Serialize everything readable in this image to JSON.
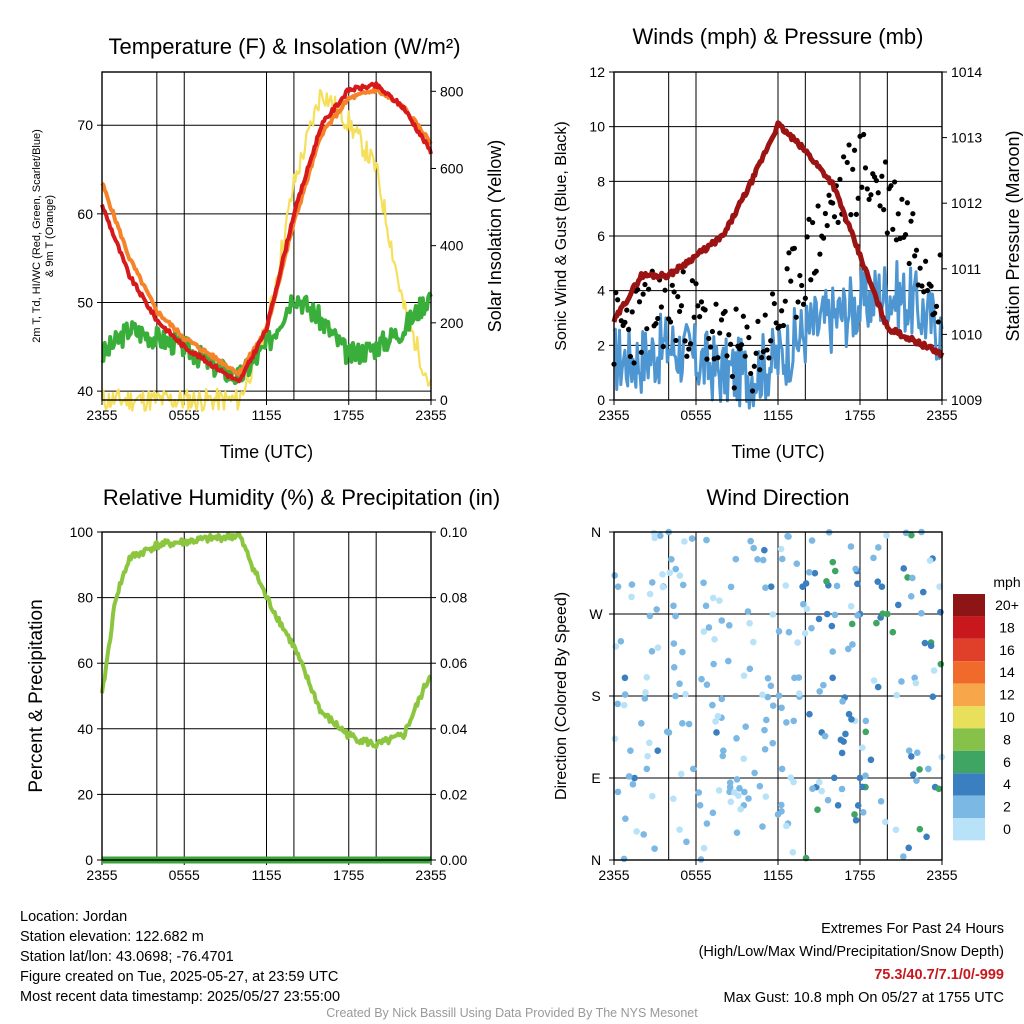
{
  "colors": {
    "temp": "#d7191c",
    "dewpoint": "#3aae3a",
    "wind_chill": "#2f70c0",
    "temp9m": "#f6832a",
    "insolation": "#f6df5a",
    "wind": "#4d96d1",
    "gust": "#000000",
    "pressure": "#9b1313",
    "rh": "#8cc63f",
    "precip": "#3aa43a",
    "extremes": "#c8171d"
  },
  "panels": {
    "temperature": {
      "title": "Temperature (F) & Insolation (W/m²)",
      "ylabel_left": "2m T, Tₑ, HI/WC (Red, Green, Scarlet/Blue) & 9m T (Orange)",
      "ylabel_left_line1": "2m T, Td, HI/WC (Red, Green, Scarlet/Blue)",
      "ylabel_left_line2": "& 9m T (Orange)",
      "ylabel_right": "Solar Insolation (Yellow)",
      "xlabel": "Time (UTC)",
      "yticks_left": [
        "40",
        "50",
        "60",
        "70"
      ],
      "yticks_right": [
        "0",
        "200",
        "400",
        "600",
        "800"
      ]
    },
    "winds": {
      "title": "Winds (mph) & Pressure (mb)",
      "ylabel_left": "Sonic Wind & Gust (Blue, Black)",
      "ylabel_right": "Station Pressure (Maroon)",
      "xlabel": "Time (UTC)",
      "yticks_left": [
        "0",
        "2",
        "4",
        "6",
        "8",
        "10",
        "12"
      ],
      "yticks_right": [
        "1009",
        "1010",
        "1011",
        "1012",
        "1013",
        "1014"
      ]
    },
    "humidity": {
      "title": "Relative Humidity (%) & Precipitation (in)",
      "ylabel_left": "Percent & Precipitation",
      "yticks_left": [
        "0",
        "20",
        "40",
        "60",
        "80",
        "100"
      ],
      "yticks_right": [
        "0.00",
        "0.02",
        "0.04",
        "0.06",
        "0.08",
        "0.10"
      ]
    },
    "direction": {
      "title": "Wind Direction",
      "ylabel_left": "Direction (Colored By Speed)",
      "yticks_left": [
        "N",
        "E",
        "S",
        "W",
        "N"
      ],
      "legend_title": "mph",
      "legend_labels": [
        "20+",
        "18",
        "16",
        "14",
        "12",
        "10",
        "8",
        "6",
        "4",
        "2",
        "0"
      ],
      "legend_colors": [
        "#8e1515",
        "#c8171d",
        "#e0402a",
        "#f06a2c",
        "#f7a64a",
        "#e8e05a",
        "#86c24a",
        "#3fa563",
        "#3a7fc0",
        "#7bb8e4",
        "#b8e2f8"
      ]
    }
  },
  "xticks": [
    "2355",
    "0555",
    "1155",
    "1755",
    "2355"
  ],
  "info": {
    "location": "Location: Jordan",
    "elevation": "Station elevation: 122.682 m",
    "latlon": "Station lat/lon: 43.0698; -76.4701",
    "created": "Figure created on Tue, 2025-05-27, at 23:59 UTC",
    "recent": "Most recent data timestamp: 2025/05/27 23:55:00"
  },
  "extremes": {
    "heading": "Extremes For Past 24 Hours",
    "subheading": "(High/Low/Max Wind/Precipitation/Snow Depth)",
    "values": "75.3/40.7/7.1/0/-999",
    "max_gust": "Max Gust: 10.8 mph On 05/27 at 1755 UTC"
  },
  "credit": "Created By Nick Bassill Using Data Provided By The NYS Mesonet",
  "chart_data": [
    {
      "type": "line",
      "title": "Temperature (F) & Insolation (W/m²)",
      "xlabel": "Time (UTC)",
      "x_hours": [
        0,
        2,
        4,
        6,
        8,
        10,
        12,
        14,
        16,
        18,
        20,
        22,
        24
      ],
      "ylim_left": [
        39,
        76
      ],
      "ylim_right": [
        0,
        850
      ],
      "series": [
        {
          "name": "2m T (Red)",
          "axis": "left",
          "values": [
            61,
            53,
            48,
            45,
            43,
            41,
            47,
            60,
            70,
            74,
            74.5,
            72,
            67
          ]
        },
        {
          "name": "9m T (Orange)",
          "axis": "left",
          "values": [
            63.5,
            55,
            49,
            46,
            44,
            42,
            47,
            59,
            69,
            73,
            74,
            72,
            68
          ]
        },
        {
          "name": "Td (Green)",
          "axis": "left",
          "values": [
            44,
            47,
            46,
            45,
            43,
            41.5,
            45,
            51,
            48,
            44,
            45,
            47,
            51
          ]
        },
        {
          "name": "Solar Insolation (Yellow)",
          "axis": "right",
          "values": [
            0,
            0,
            0,
            0,
            0,
            0,
            180,
            560,
            800,
            720,
            600,
            240,
            30
          ]
        }
      ]
    },
    {
      "type": "line",
      "title": "Winds (mph) & Pressure (mb)",
      "xlabel": "Time (UTC)",
      "x_hours": [
        0,
        2,
        4,
        6,
        8,
        10,
        12,
        14,
        16,
        18,
        20,
        22,
        24
      ],
      "ylim_left": [
        0,
        12
      ],
      "ylim_right": [
        1009,
        1014
      ],
      "series": [
        {
          "name": "Sonic Wind (Blue)",
          "axis": "left",
          "values": [
            1.5,
            1.5,
            2.0,
            1.5,
            1.0,
            1.0,
            1.5,
            2.5,
            3.0,
            3.5,
            4.0,
            3.5,
            2.5
          ]
        },
        {
          "name": "Gust (Black)",
          "axis": "left",
          "values": [
            2.5,
            3.0,
            3.5,
            3.0,
            2.0,
            1.5,
            3.0,
            5.0,
            7.0,
            8.5,
            7.5,
            6.0,
            4.0
          ]
        },
        {
          "name": "Station Pressure (Maroon)",
          "axis": "right",
          "values": [
            1010.2,
            1010.9,
            1010.9,
            1011.2,
            1011.5,
            1012.3,
            1013.2,
            1012.8,
            1012.3,
            1011.2,
            1010.1,
            1009.9,
            1009.7
          ]
        }
      ]
    },
    {
      "type": "line",
      "title": "Relative Humidity (%) & Precipitation (in)",
      "x_hours": [
        0,
        1,
        2,
        4,
        6,
        8,
        10,
        12,
        14,
        16,
        18,
        20,
        22,
        24
      ],
      "ylim_left": [
        0,
        100
      ],
      "ylim_right": [
        0,
        0.1
      ],
      "series": [
        {
          "name": "Relative Humidity",
          "axis": "left",
          "values": [
            50,
            80,
            92,
            96,
            97,
            98,
            99,
            80,
            65,
            45,
            38,
            35,
            38,
            57
          ]
        },
        {
          "name": "Precipitation",
          "axis": "right",
          "values": [
            0,
            0,
            0,
            0,
            0,
            0,
            0,
            0,
            0,
            0,
            0,
            0,
            0,
            0
          ]
        }
      ]
    },
    {
      "type": "scatter",
      "title": "Wind Direction",
      "yticks": [
        "N",
        "E",
        "S",
        "W",
        "N"
      ],
      "ylim_degrees": [
        0,
        360
      ],
      "points_hour_deg_speed": [
        [
          0.3,
          300,
          1
        ],
        [
          0.5,
          240,
          2
        ],
        [
          0.8,
          200,
          3
        ],
        [
          1.2,
          120,
          2
        ],
        [
          1.5,
          90,
          3
        ],
        [
          2.0,
          150,
          2
        ],
        [
          2.4,
          100,
          1
        ],
        [
          2.8,
          70,
          0
        ],
        [
          3.2,
          120,
          3
        ],
        [
          3.6,
          300,
          3
        ],
        [
          4.0,
          360,
          1
        ],
        [
          4.2,
          330,
          2
        ],
        [
          4.5,
          180,
          1
        ],
        [
          5.0,
          150,
          2
        ],
        [
          5.3,
          20,
          1
        ],
        [
          5.8,
          100,
          2
        ],
        [
          6.3,
          60,
          2
        ],
        [
          6.8,
          40,
          1
        ],
        [
          7.2,
          170,
          2
        ],
        [
          7.5,
          140,
          3
        ],
        [
          8.0,
          120,
          1
        ],
        [
          8.5,
          80,
          2
        ],
        [
          9.0,
          30,
          1
        ],
        [
          9.5,
          60,
          2
        ],
        [
          10.0,
          350,
          2
        ],
        [
          10.5,
          330,
          2
        ],
        [
          11.0,
          340,
          3
        ],
        [
          11.5,
          300,
          3
        ],
        [
          12.0,
          50,
          2
        ],
        [
          12.3,
          100,
          1
        ],
        [
          12.8,
          250,
          2
        ],
        [
          13.2,
          200,
          2
        ],
        [
          13.8,
          300,
          3
        ],
        [
          14.3,
          160,
          3
        ],
        [
          14.8,
          80,
          3
        ],
        [
          15.2,
          140,
          3
        ],
        [
          15.6,
          270,
          4
        ],
        [
          16.0,
          200,
          3
        ],
        [
          16.4,
          60,
          4
        ],
        [
          16.8,
          130,
          3
        ],
        [
          17.2,
          160,
          4
        ],
        [
          17.6,
          50,
          6
        ],
        [
          18.0,
          270,
          4
        ],
        [
          18.4,
          80,
          6
        ],
        [
          18.8,
          110,
          3
        ],
        [
          19.2,
          260,
          5
        ],
        [
          19.6,
          300,
          4
        ],
        [
          20.0,
          270,
          6
        ],
        [
          20.4,
          250,
          6
        ],
        [
          20.8,
          280,
          3
        ],
        [
          21.2,
          320,
          3
        ],
        [
          21.6,
          120,
          2
        ],
        [
          22.0,
          200,
          2
        ],
        [
          22.5,
          360,
          2
        ],
        [
          23.0,
          100,
          2
        ],
        [
          23.5,
          80,
          3
        ]
      ]
    }
  ]
}
